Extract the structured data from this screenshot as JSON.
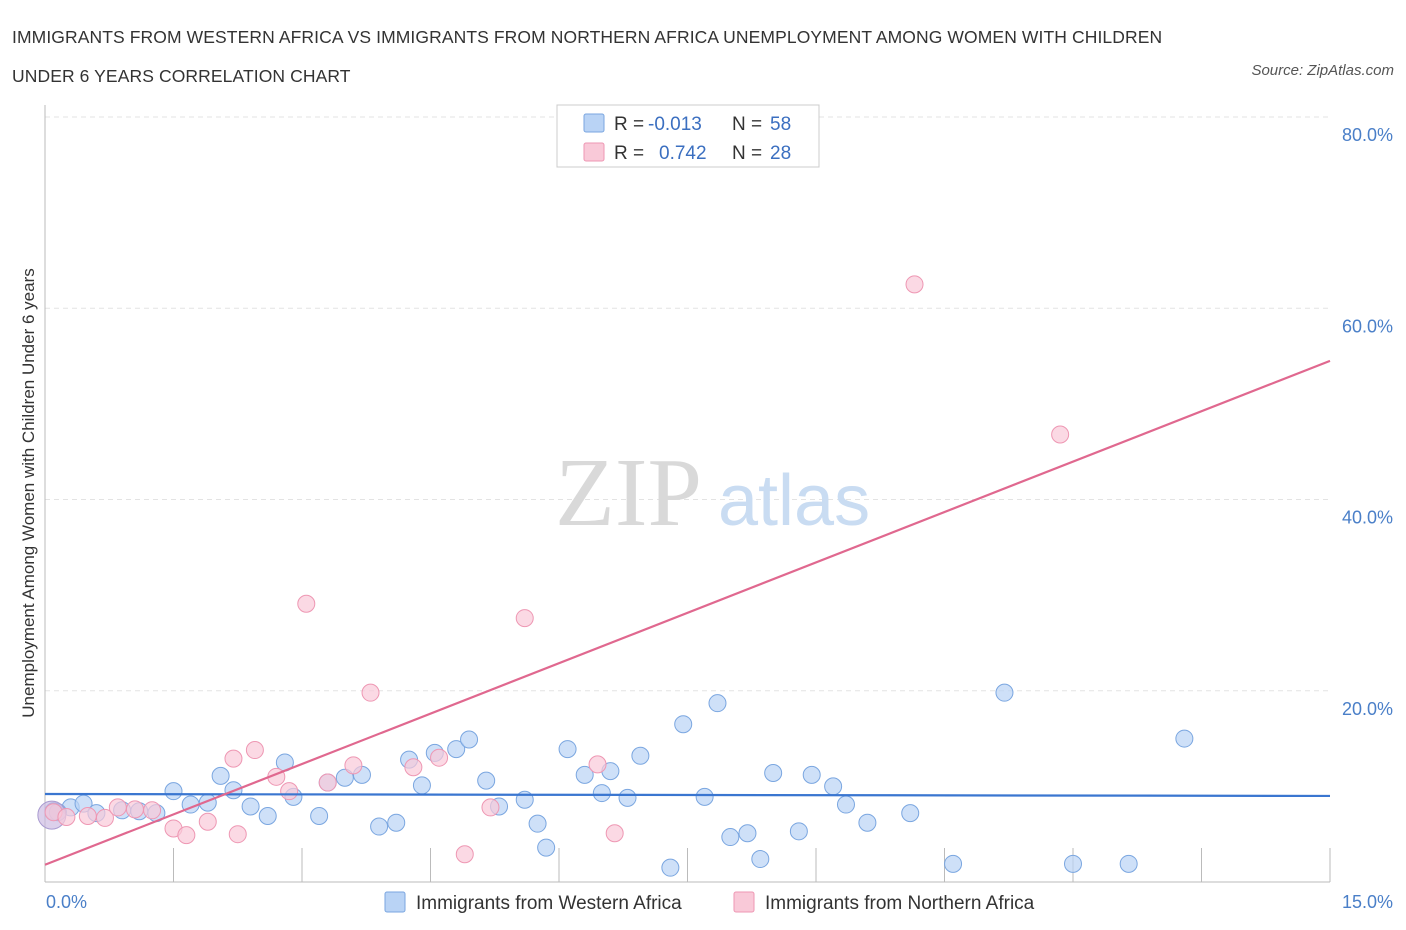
{
  "title": "IMMIGRANTS FROM WESTERN AFRICA VS IMMIGRANTS FROM NORTHERN AFRICA UNEMPLOYMENT AMONG WOMEN WITH CHILDREN UNDER 6 YEARS CORRELATION CHART",
  "source": "Source: ZipAtlas.com",
  "watermark": {
    "zip": "ZIP",
    "atlas": "atlas"
  },
  "legend": {
    "r_label": "R =",
    "n_label": "N =",
    "rows": [
      {
        "r": "-0.013",
        "n": "58",
        "color": "#b9d3f5",
        "stroke": "#7aa6e0"
      },
      {
        "r": "0.742",
        "n": "28",
        "color": "#f9c9d8",
        "stroke": "#ee97b3"
      }
    ]
  },
  "chart_data": {
    "type": "scatter",
    "title": "IMMIGRANTS FROM WESTERN AFRICA VS IMMIGRANTS FROM NORTHERN AFRICA UNEMPLOYMENT AMONG WOMEN WITH CHILDREN UNDER 6 YEARS CORRELATION CHART",
    "xlabel": "",
    "ylabel": "Unemployment Among Women with Children Under 6 years",
    "xlim": [
      0,
      15
    ],
    "ylim": [
      0,
      80
    ],
    "x_tick_labels": [
      "0.0%",
      "15.0%"
    ],
    "y_ticks": [
      20,
      40,
      60,
      80
    ],
    "y_tick_labels": [
      "20.0%",
      "40.0%",
      "60.0%",
      "80.0%"
    ],
    "grid": true,
    "series": [
      {
        "name": "Immigrants from Western Africa",
        "color": "#b9d3f5",
        "stroke": "#7aa6e0",
        "line_color": "#3a76d0",
        "trend": [
          [
            0,
            9.2
          ],
          [
            15,
            9.0
          ]
        ],
        "points": [
          [
            0.1,
            7.4
          ],
          [
            0.3,
            7.8
          ],
          [
            0.45,
            8.2
          ],
          [
            0.6,
            7.2
          ],
          [
            0.9,
            7.5
          ],
          [
            1.1,
            7.4
          ],
          [
            1.3,
            7.2
          ],
          [
            1.5,
            9.5
          ],
          [
            1.7,
            8.1
          ],
          [
            1.9,
            8.3
          ],
          [
            2.05,
            11.1
          ],
          [
            2.2,
            9.6
          ],
          [
            2.4,
            7.9
          ],
          [
            2.6,
            6.9
          ],
          [
            2.8,
            12.5
          ],
          [
            2.9,
            8.9
          ],
          [
            3.2,
            6.9
          ],
          [
            3.3,
            10.4
          ],
          [
            3.5,
            10.9
          ],
          [
            3.7,
            11.2
          ],
          [
            3.9,
            5.8
          ],
          [
            4.1,
            6.2
          ],
          [
            4.25,
            12.8
          ],
          [
            4.4,
            10.1
          ],
          [
            4.55,
            13.5
          ],
          [
            4.8,
            13.9
          ],
          [
            4.95,
            14.9
          ],
          [
            5.15,
            10.6
          ],
          [
            5.3,
            7.9
          ],
          [
            5.6,
            8.6
          ],
          [
            5.75,
            6.1
          ],
          [
            5.85,
            3.6
          ],
          [
            6.1,
            13.9
          ],
          [
            6.3,
            11.2
          ],
          [
            6.5,
            9.3
          ],
          [
            6.6,
            11.6
          ],
          [
            6.8,
            8.8
          ],
          [
            6.95,
            13.2
          ],
          [
            7.3,
            1.5
          ],
          [
            7.45,
            16.5
          ],
          [
            7.7,
            8.9
          ],
          [
            7.85,
            18.7
          ],
          [
            8.0,
            4.7
          ],
          [
            8.2,
            5.1
          ],
          [
            8.35,
            2.4
          ],
          [
            8.5,
            11.4
          ],
          [
            8.8,
            5.3
          ],
          [
            8.95,
            11.2
          ],
          [
            9.2,
            10.0
          ],
          [
            9.35,
            8.1
          ],
          [
            9.6,
            6.2
          ],
          [
            10.1,
            7.2
          ],
          [
            10.6,
            1.9
          ],
          [
            11.2,
            19.8
          ],
          [
            12.0,
            1.9
          ],
          [
            12.65,
            1.9
          ],
          [
            13.3,
            15.0
          ],
          [
            0.15,
            7.3
          ]
        ]
      },
      {
        "name": "Immigrants from Northern Africa",
        "color": "#f9c9d8",
        "stroke": "#ee97b3",
        "line_color": "#e0688f",
        "trend": [
          [
            0,
            1.8
          ],
          [
            15,
            54.5
          ]
        ],
        "points": [
          [
            0.1,
            7.3
          ],
          [
            0.25,
            6.8
          ],
          [
            0.5,
            6.9
          ],
          [
            0.7,
            6.7
          ],
          [
            0.85,
            7.8
          ],
          [
            1.05,
            7.6
          ],
          [
            1.25,
            7.5
          ],
          [
            1.5,
            5.6
          ],
          [
            1.65,
            4.9
          ],
          [
            1.9,
            6.3
          ],
          [
            2.2,
            12.9
          ],
          [
            2.25,
            5.0
          ],
          [
            2.45,
            13.8
          ],
          [
            2.7,
            11.0
          ],
          [
            2.85,
            9.5
          ],
          [
            3.05,
            29.1
          ],
          [
            3.3,
            10.4
          ],
          [
            3.6,
            12.2
          ],
          [
            3.8,
            19.8
          ],
          [
            4.3,
            12.0
          ],
          [
            4.6,
            13.0
          ],
          [
            4.9,
            2.9
          ],
          [
            5.2,
            7.8
          ],
          [
            5.6,
            27.6
          ],
          [
            6.45,
            12.3
          ],
          [
            6.65,
            5.1
          ],
          [
            10.15,
            62.5
          ],
          [
            11.85,
            46.8
          ]
        ]
      }
    ]
  },
  "bottom_legend": [
    "Immigrants from Western Africa",
    "Immigrants from Northern Africa"
  ]
}
